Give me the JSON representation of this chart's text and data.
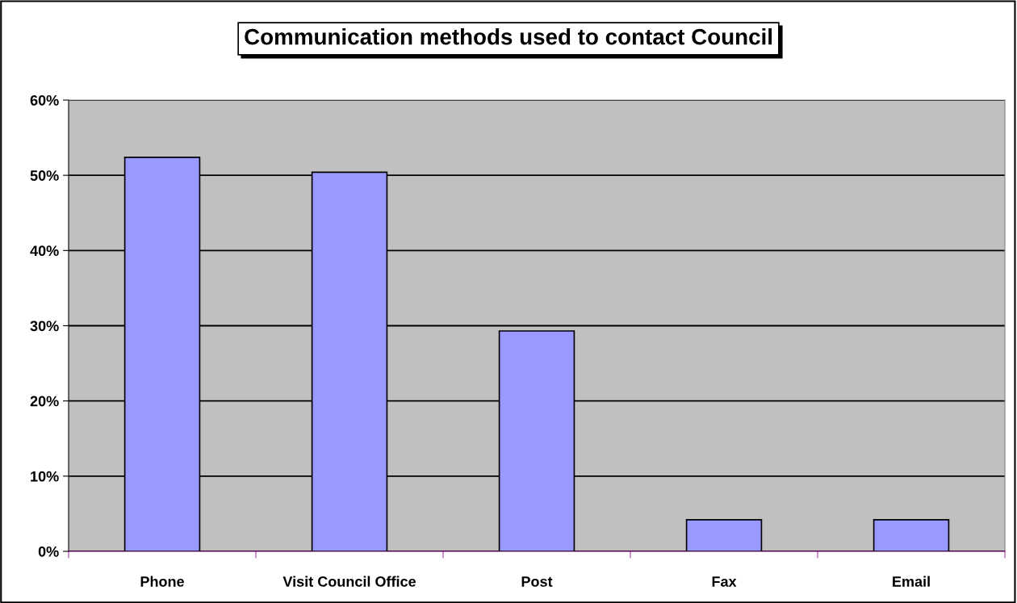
{
  "chart_data": {
    "type": "bar",
    "title": "Communication methods used to contact Council",
    "categories": [
      "Phone",
      "Visit Council Office",
      "Post",
      "Fax",
      "Email"
    ],
    "values": [
      52.4,
      50.4,
      29.3,
      4.2,
      4.2
    ],
    "color": "#9999ff",
    "ylim": [
      0,
      60
    ],
    "yticks": [
      {
        "value": 0,
        "label": "0%"
      },
      {
        "value": 10,
        "label": "10%"
      },
      {
        "value": 20,
        "label": "20%"
      },
      {
        "value": 30,
        "label": "30%"
      },
      {
        "value": 40,
        "label": "40%"
      },
      {
        "value": 50,
        "label": "50%"
      },
      {
        "value": 60,
        "label": "60%"
      }
    ],
    "grid": "y",
    "legend": false
  }
}
